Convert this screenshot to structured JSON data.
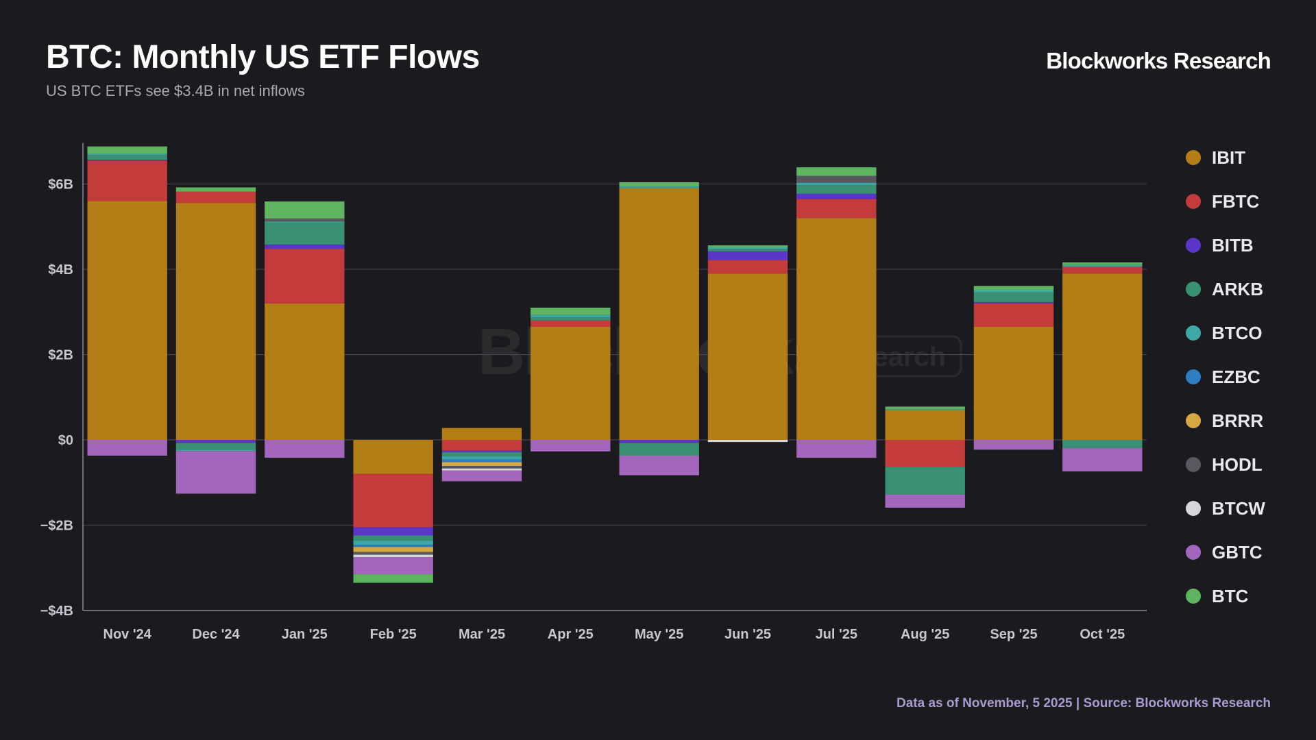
{
  "header": {
    "title": "BTC: Monthly US ETF Flows",
    "subtitle": "US BTC ETFs see $3.4B in net inflows",
    "brand": "Blockworks Research"
  },
  "footer": {
    "source": "Data as of November, 5 2025 | Source: Blockworks Research"
  },
  "watermark": {
    "main": "Blockworks",
    "sub": "Research"
  },
  "chart_data": {
    "type": "bar",
    "stacked": true,
    "title": "BTC: Monthly US ETF Flows",
    "subtitle": "US BTC ETFs see $3.4B in net inflows",
    "xlabel": "",
    "ylabel": "",
    "unit": "USD billions",
    "ylim": [
      -4,
      6
    ],
    "yticks": [
      6,
      4,
      2,
      0,
      -2,
      -4
    ],
    "ytick_labels": [
      "$6B",
      "$4B",
      "$2B",
      "$0",
      "−$2B",
      "−$4B"
    ],
    "grid": true,
    "legend_position": "right",
    "categories": [
      "Nov '24",
      "Dec '24",
      "Jan '25",
      "Feb '25",
      "Mar '25",
      "Apr '25",
      "May '25",
      "Jun '25",
      "Jul '25",
      "Aug '25",
      "Sep '25",
      "Oct '25"
    ],
    "series": [
      {
        "name": "IBIT",
        "color": "#b47e16",
        "values": [
          5.6,
          5.55,
          3.2,
          -0.8,
          0.28,
          2.65,
          5.9,
          3.9,
          5.2,
          0.7,
          2.65,
          3.9
        ]
      },
      {
        "name": "FBTC",
        "color": "#c33b3b",
        "values": [
          0.95,
          0.27,
          1.28,
          -1.25,
          -0.25,
          0.15,
          0.0,
          0.32,
          0.45,
          -0.63,
          0.55,
          0.16
        ]
      },
      {
        "name": "BITB",
        "color": "#5a35c8",
        "values": [
          0.02,
          -0.07,
          0.1,
          -0.19,
          -0.04,
          0.0,
          -0.07,
          0.2,
          0.12,
          0.0,
          0.03,
          0.0
        ]
      },
      {
        "name": "ARKB",
        "color": "#3a9072",
        "values": [
          0.11,
          -0.17,
          0.52,
          -0.12,
          -0.09,
          0.07,
          -0.3,
          0.06,
          0.2,
          -0.65,
          0.23,
          -0.19
        ]
      },
      {
        "name": "BTCO",
        "color": "#3ea8a6",
        "values": [
          0.03,
          -0.02,
          0.02,
          -0.1,
          -0.08,
          0.06,
          0.04,
          0.04,
          0.06,
          0.02,
          0.05,
          0.04
        ]
      },
      {
        "name": "EZBC",
        "color": "#2f7dc0",
        "values": [
          0.0,
          0.0,
          0.0,
          -0.05,
          -0.06,
          0.0,
          0.0,
          0.0,
          0.0,
          0.0,
          0.0,
          0.0
        ]
      },
      {
        "name": "BRRR",
        "color": "#d5a844",
        "values": [
          0.0,
          0.0,
          0.0,
          -0.12,
          -0.09,
          0.0,
          0.0,
          0.0,
          0.0,
          0.0,
          0.0,
          0.0
        ]
      },
      {
        "name": "HODL",
        "color": "#585861",
        "values": [
          0.0,
          0.0,
          0.07,
          -0.06,
          -0.06,
          0.0,
          0.0,
          0.0,
          0.16,
          0.0,
          0.0,
          0.0
        ]
      },
      {
        "name": "BTCW",
        "color": "#d6d6dc",
        "values": [
          0.0,
          0.0,
          0.0,
          -0.06,
          -0.05,
          0.0,
          0.0,
          -0.05,
          0.0,
          0.0,
          0.0,
          0.0
        ]
      },
      {
        "name": "GBTC",
        "color": "#a465bd",
        "values": [
          -0.37,
          -1.0,
          -0.42,
          -0.4,
          -0.25,
          -0.27,
          -0.46,
          0.0,
          -0.42,
          -0.31,
          -0.23,
          -0.55
        ]
      },
      {
        "name": "BTC",
        "color": "#5fb45f",
        "values": [
          0.17,
          0.1,
          0.4,
          -0.2,
          0.0,
          0.17,
          0.1,
          0.04,
          0.2,
          0.06,
          0.1,
          0.06
        ]
      }
    ]
  }
}
